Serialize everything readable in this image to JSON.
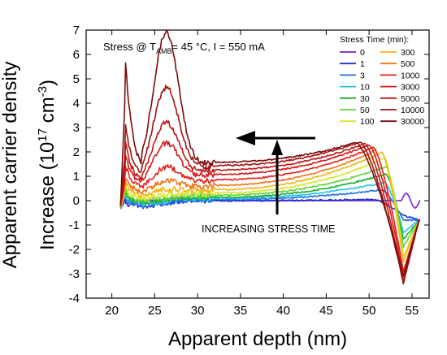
{
  "chart_data": {
    "type": "line",
    "title": "",
    "xlabel": "Apparent depth (nm)",
    "ylabel_line1": "Apparent carrier density",
    "ylabel_line2": "Increase (10^17 cm^-3)",
    "xlim": [
      17,
      57
    ],
    "ylim": [
      -4,
      7
    ],
    "xticks": [
      20,
      25,
      30,
      35,
      40,
      45,
      50,
      55
    ],
    "yticks": [
      -4,
      -3,
      -2,
      -1,
      0,
      1,
      2,
      3,
      4,
      5,
      6,
      7
    ],
    "grid": false,
    "annotation": {
      "prefix": "Stress @ T",
      "subscript": "AMB",
      "suffix": "= 45 °C, I = 550 mA"
    },
    "arrow_label": "INCREASING STRESS TIME",
    "legend": {
      "title": "Stress Time (min):",
      "placement": "top-right"
    },
    "series": [
      {
        "name": "0",
        "color": "#7b1fd6",
        "plateau": 0.0,
        "peak_x": 0,
        "peak": 0.0,
        "hump": 0.0,
        "front": 0.0,
        "dip": 0.3
      },
      {
        "name": "1",
        "color": "#2030d0",
        "plateau": 0.0,
        "peak_x": 50.5,
        "peak": 0.05,
        "hump": 0.0,
        "front": 0.15,
        "dip": -0.6
      },
      {
        "name": "3",
        "color": "#1f6fe0",
        "plateau": 0.05,
        "peak_x": 51.5,
        "peak": 0.45,
        "hump": 0.0,
        "front": 0.2,
        "dip": -0.8
      },
      {
        "name": "10",
        "color": "#22c6e8",
        "plateau": 0.1,
        "peak_x": 51.8,
        "peak": 0.75,
        "hump": 0.0,
        "front": 0.3,
        "dip": -1.3
      },
      {
        "name": "30",
        "color": "#1faa2a",
        "plateau": 0.15,
        "peak_x": 52.0,
        "peak": 1.1,
        "hump": 0.05,
        "front": 0.35,
        "dip": -1.6
      },
      {
        "name": "50",
        "color": "#62d43a",
        "plateau": 0.25,
        "peak_x": 52.0,
        "peak": 1.4,
        "hump": 0.05,
        "front": 0.4,
        "dip": -1.9
      },
      {
        "name": "100",
        "color": "#d7e629",
        "plateau": 0.35,
        "peak_x": 51.8,
        "peak": 1.75,
        "hump": 0.1,
        "front": 0.5,
        "dip": -2.3
      },
      {
        "name": "300",
        "color": "#f2b51a",
        "plateau": 0.5,
        "peak_x": 51.5,
        "peak": 2.0,
        "hump": 0.2,
        "front": 0.6,
        "dip": -2.5
      },
      {
        "name": "500",
        "color": "#f0741a",
        "plateau": 0.7,
        "peak_x": 51.0,
        "peak": 2.1,
        "hump": 0.4,
        "front": 0.7,
        "dip": -2.7
      },
      {
        "name": "1000",
        "color": "#e5231b",
        "plateau": 0.95,
        "peak_x": 50.5,
        "peak": 2.2,
        "hump": 0.8,
        "front": 1.0,
        "dip": -2.9
      },
      {
        "name": "3000",
        "color": "#d41c1c",
        "plateau": 1.2,
        "peak_x": 50.0,
        "peak": 2.3,
        "hump": 1.6,
        "front": 1.3,
        "dip": -3.1
      },
      {
        "name": "5000",
        "color": "#c01818",
        "plateau": 1.4,
        "peak_x": 49.5,
        "peak": 2.35,
        "hump": 2.3,
        "front": 1.6,
        "dip": -3.3
      },
      {
        "name": "10000",
        "color": "#a01212",
        "plateau": 1.6,
        "peak_x": 49.0,
        "peak": 2.4,
        "hump": 3.6,
        "front": 2.2,
        "dip": -3.4
      },
      {
        "name": "30000",
        "color": "#7a0c0c",
        "plateau": 1.75,
        "peak_x": 48.5,
        "peak": 2.4,
        "hump": 5.75,
        "front": 4.7,
        "dip": -3.1
      }
    ]
  }
}
